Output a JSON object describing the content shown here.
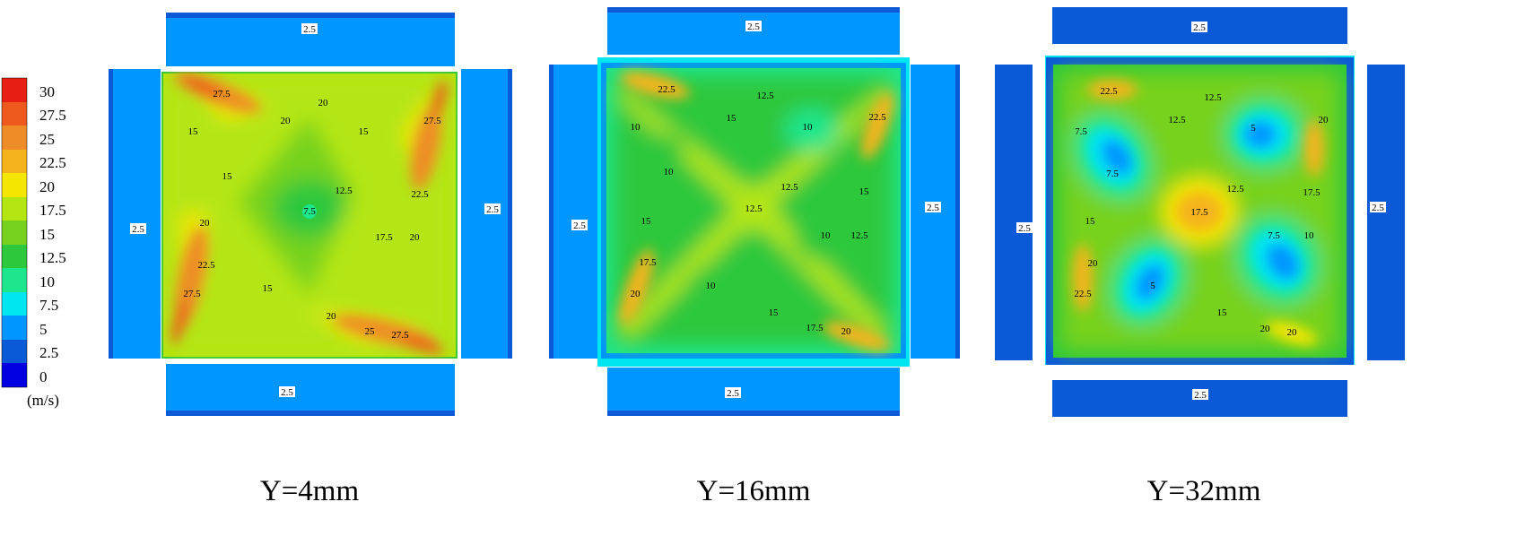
{
  "colors": {
    "0": "#0000e0",
    "2.5": "#0a5ad8",
    "5": "#0096ff",
    "7.5": "#00e6f0",
    "10": "#1ee68c",
    "12.5": "#2ec83c",
    "15": "#76d21e",
    "17.5": "#b4e614",
    "20": "#f5e600",
    "22.5": "#f5b41e",
    "25": "#ee8c28",
    "27.5": "#ee5a1e",
    "30": "#e61e14"
  },
  "chart_data": [
    {
      "type": "contour",
      "title": "Y=4mm",
      "colorbar": {
        "levels": [
          30,
          27.5,
          25,
          22.5,
          20,
          17.5,
          15,
          12.5,
          10,
          7.5,
          5,
          2.5,
          0
        ],
        "ticks": [
          "30",
          "27.5",
          "25",
          "22.5",
          "20",
          "17.5",
          "15",
          "12.5",
          "10",
          "7.5",
          "5",
          "2.5",
          "0"
        ],
        "unit": "(m/s)"
      },
      "plenum_labels": [
        "2.5",
        "2.5",
        "2.5",
        "2.5"
      ],
      "contour_labels": [
        "27.5",
        "20",
        "20",
        "15",
        "15",
        "15",
        "27.5",
        "22.5",
        "12.5",
        "7.5",
        "17.5",
        "20",
        "20",
        "22.5",
        "27.5",
        "15",
        "20",
        "25",
        "27.5"
      ]
    },
    {
      "type": "contour",
      "title": "Y=16mm",
      "plenum_labels": [
        "2.5",
        "2.5",
        "2.5",
        "2.5"
      ],
      "contour_labels": [
        "22.5",
        "12.5",
        "15",
        "10",
        "10",
        "10",
        "22.5",
        "12.5",
        "15",
        "12.5",
        "15",
        "10",
        "12.5",
        "17.5",
        "20",
        "10",
        "15",
        "17.5",
        "20"
      ]
    },
    {
      "type": "contour",
      "title": "Y=32mm",
      "plenum_labels": [
        "2.5",
        "2.5",
        "2.5",
        "2.5"
      ],
      "contour_labels": [
        "22.5",
        "12.5",
        "12.5",
        "7.5",
        "5",
        "20",
        "7.5",
        "12.5",
        "17.5",
        "17.5",
        "15",
        "7.5",
        "10",
        "20",
        "5",
        "22.5",
        "15",
        "20",
        "20"
      ]
    }
  ]
}
